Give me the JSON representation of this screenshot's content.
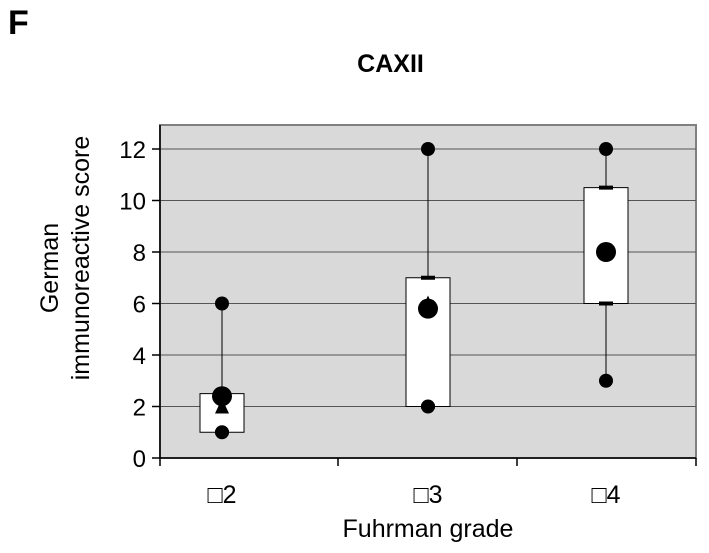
{
  "panel_label": "F",
  "chart_data": {
    "type": "box",
    "title": "CAXII",
    "xlabel": "Fuhrman grade",
    "ylabel_lines": [
      "German",
      "immunoreactive score"
    ],
    "categories": [
      "≤2",
      "3",
      "≥4"
    ],
    "category_symbols": [
      "□",
      "□",
      "□"
    ],
    "ylim": [
      0,
      13
    ],
    "yticks": [
      0,
      2,
      4,
      6,
      8,
      10,
      12
    ],
    "grid": true,
    "colors": {
      "plot_bg": "#d9d9d9",
      "box_fill": "#ffffff",
      "marker": "#000000",
      "grid": "#555555"
    },
    "groups": [
      {
        "category": "≤2",
        "min": 1,
        "q1": 1,
        "median": 2,
        "q3": 2.5,
        "max": 6,
        "mean": 2.4,
        "median_marker": "triangle"
      },
      {
        "category": "3",
        "min": 2,
        "q1": 2,
        "median": 6,
        "q3": 7,
        "max": 12,
        "mean": 5.8,
        "median_marker": "triangle"
      },
      {
        "category": "≥4",
        "min": 3,
        "q1": 6,
        "median": 8,
        "q3": 10.5,
        "max": 12,
        "mean": 8,
        "median_marker": "triangle"
      }
    ]
  }
}
